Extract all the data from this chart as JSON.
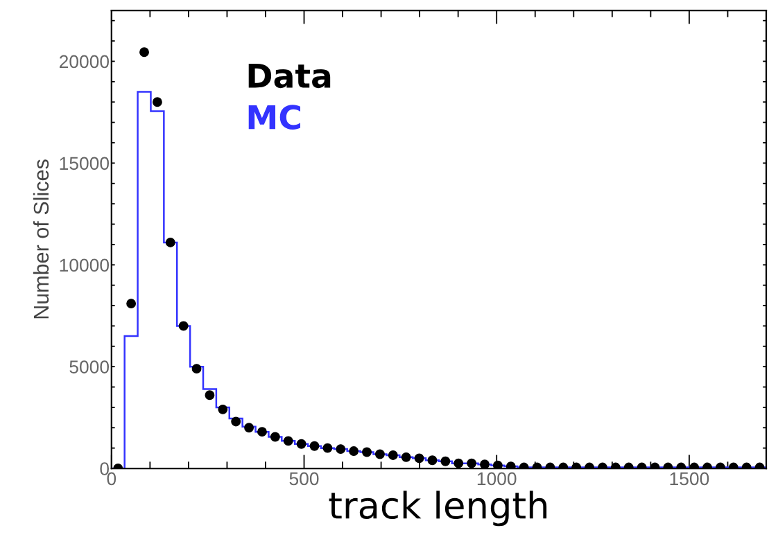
{
  "chart_data": {
    "type": "histogram",
    "xlabel": "track length",
    "ylabel": "Number of Slices",
    "bins": [
      0,
      34,
      68,
      102,
      136,
      170,
      204,
      238,
      272,
      306,
      340,
      374,
      408,
      442,
      476,
      510,
      544,
      578,
      612,
      646,
      680,
      714,
      748,
      782,
      816,
      850,
      884,
      918,
      952,
      986,
      1020,
      1054,
      1088,
      1122,
      1156,
      1190,
      1224,
      1258,
      1292,
      1326,
      1360,
      1394,
      1428,
      1462,
      1496,
      1530,
      1564,
      1598,
      1632,
      1666,
      1700
    ],
    "series": [
      {
        "name": "Data",
        "type": "scatter",
        "color": "#000000",
        "marker": "circle",
        "x": [
          17,
          51,
          85,
          119,
          153,
          187,
          221,
          255,
          289,
          323,
          357,
          391,
          425,
          459,
          493,
          527,
          561,
          595,
          629,
          663,
          697,
          731,
          765,
          799,
          833,
          867,
          901,
          935,
          969,
          1003,
          1037,
          1071,
          1105,
          1139,
          1173,
          1207,
          1241,
          1275,
          1309,
          1343,
          1377,
          1411,
          1445,
          1479,
          1513,
          1547,
          1581,
          1615,
          1649,
          1683
        ],
        "values": [
          0,
          8100,
          20450,
          18000,
          11100,
          7000,
          4900,
          3600,
          2900,
          2300,
          2000,
          1800,
          1550,
          1350,
          1200,
          1100,
          1000,
          950,
          850,
          800,
          700,
          650,
          550,
          500,
          400,
          350,
          250,
          250,
          200,
          150,
          100,
          50,
          50,
          50,
          50,
          50,
          50,
          50,
          50,
          50,
          50,
          50,
          50,
          50,
          50,
          50,
          50,
          50,
          50,
          50
        ]
      },
      {
        "name": "MC",
        "color": "#3333ff",
        "values": [
          0,
          6500,
          18500,
          17550,
          11100,
          7000,
          5000,
          3900,
          3000,
          2450,
          2050,
          1800,
          1550,
          1350,
          1200,
          1100,
          1000,
          950,
          850,
          800,
          700,
          650,
          550,
          500,
          400,
          350,
          250,
          250,
          200,
          150,
          100,
          50,
          50,
          50,
          50,
          50,
          50,
          50,
          50,
          50,
          50,
          50,
          50,
          50,
          50,
          50,
          50,
          50,
          50,
          50
        ]
      }
    ],
    "xlim": [
      0,
      1700
    ],
    "ylim": [
      0,
      22500
    ],
    "xticks": [
      0,
      {
        "value": 100,
        "label": null
      },
      {
        "value": 200,
        "label": null
      },
      {
        "value": 300,
        "label": null
      },
      {
        "value": 400,
        "label": null
      },
      500,
      {
        "value": 600,
        "label": null
      },
      {
        "value": 700,
        "label": null
      },
      {
        "value": 800,
        "label": null
      },
      {
        "value": 900,
        "label": null
      },
      1000,
      {
        "value": 1100,
        "label": null
      },
      {
        "value": 1200,
        "label": null
      },
      {
        "value": 1300,
        "label": null
      },
      {
        "value": 1400,
        "label": null
      },
      1500,
      {
        "value": 1600,
        "label": null
      }
    ],
    "yticks": [
      0,
      {
        "value": 1000,
        "label": null
      },
      {
        "value": 2000,
        "label": null
      },
      {
        "value": 3000,
        "label": null
      },
      {
        "value": 4000,
        "label": null
      },
      5000,
      {
        "value": 6000,
        "label": null
      },
      {
        "value": 7000,
        "label": null
      },
      {
        "value": 8000,
        "label": null
      },
      {
        "value": 9000,
        "label": null
      },
      10000,
      {
        "value": 11000,
        "label": null
      },
      {
        "value": 12000,
        "label": null
      },
      {
        "value": 13000,
        "label": null
      },
      {
        "value": 14000,
        "label": null
      },
      15000,
      {
        "value": 16000,
        "label": null
      },
      {
        "value": 17000,
        "label": null
      },
      {
        "value": 18000,
        "label": null
      },
      {
        "value": 19000,
        "label": null
      },
      20000,
      {
        "value": 21000,
        "label": null
      },
      {
        "value": 22000,
        "label": null
      }
    ],
    "legend": "top left",
    "grid": false
  }
}
